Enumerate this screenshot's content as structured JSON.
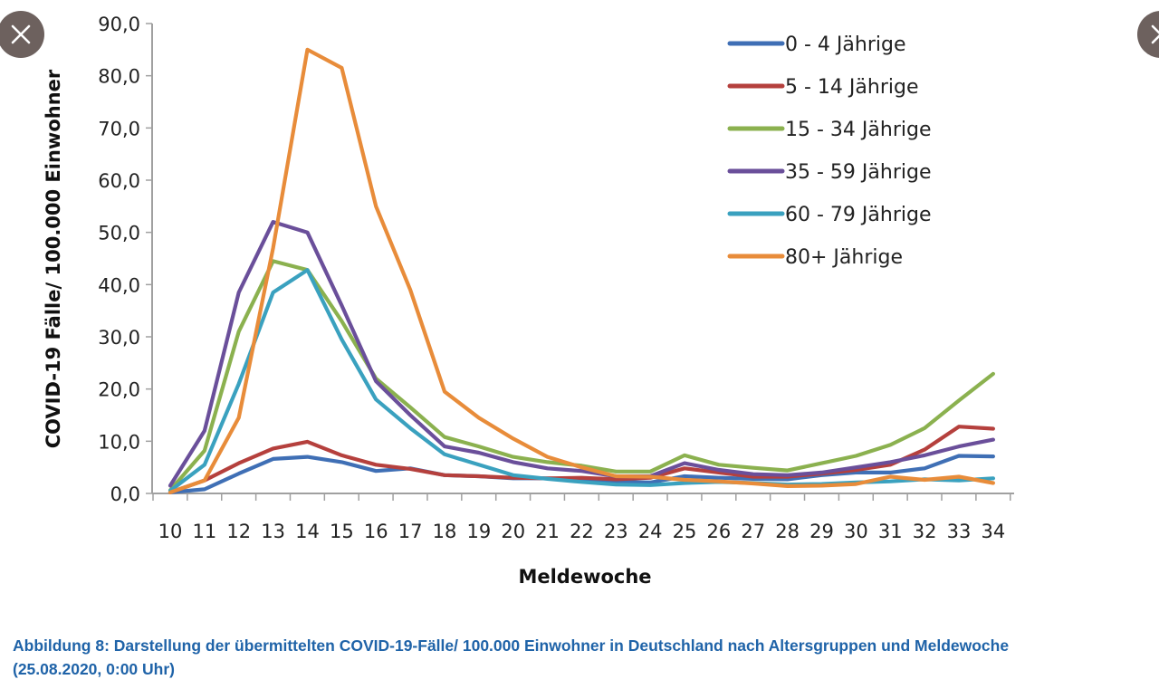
{
  "overlay": {
    "close_left_label": "Schließen",
    "close_right_label": "Schließen"
  },
  "caption": {
    "line1": "Abbildung 8: Darstellung der übermittelten COVID-19-Fälle/ 100.000 Einwohner in Deutschland nach Altersgruppen und Meldewoche",
    "line2": "(25.08.2020, 0:00 Uhr)"
  },
  "chart_data": {
    "type": "line",
    "title": "",
    "xlabel": "Meldewoche",
    "ylabel": "COVID-19 Fälle/ 100.000 Einwohner",
    "ylim": [
      0,
      90
    ],
    "yticks": [
      0,
      10,
      20,
      30,
      40,
      50,
      60,
      70,
      80,
      90
    ],
    "ytick_labels": [
      "0,0",
      "10,0",
      "20,0",
      "30,0",
      "40,0",
      "50,0",
      "60,0",
      "70,0",
      "80,0",
      "90,0"
    ],
    "grid": false,
    "legend_position": "top-right",
    "x": [
      10,
      11,
      12,
      13,
      14,
      15,
      16,
      17,
      18,
      19,
      20,
      21,
      22,
      23,
      24,
      25,
      26,
      27,
      28,
      29,
      30,
      31,
      32,
      33,
      34
    ],
    "series": [
      {
        "name": "0 - 4 Jährige",
        "color": "#3f6fb5",
        "values": [
          0.2,
          0.8,
          3.8,
          6.6,
          7.0,
          6.0,
          4.3,
          4.8,
          3.5,
          3.3,
          2.9,
          2.9,
          2.7,
          2.2,
          2.1,
          3.3,
          3.0,
          2.8,
          2.7,
          3.5,
          4.0,
          4.0,
          4.8,
          7.2,
          7.1
        ]
      },
      {
        "name": "5 - 14 Jährige",
        "color": "#b5403d",
        "values": [
          0.2,
          2.5,
          5.8,
          8.6,
          9.9,
          7.3,
          5.5,
          4.7,
          3.5,
          3.3,
          3.0,
          2.9,
          3.0,
          2.7,
          3.0,
          4.8,
          4.0,
          3.2,
          3.2,
          3.8,
          4.5,
          5.5,
          8.4,
          12.8,
          12.4
        ]
      },
      {
        "name": "15 - 34 Jährige",
        "color": "#8bb14f",
        "values": [
          0.6,
          8.2,
          31.0,
          44.5,
          42.8,
          33.0,
          22.0,
          16.5,
          10.8,
          9.0,
          7.0,
          6.0,
          5.3,
          4.2,
          4.2,
          7.3,
          5.5,
          4.9,
          4.4,
          5.8,
          7.2,
          9.3,
          12.5,
          17.8,
          22.9
        ]
      },
      {
        "name": "35 - 59 Jährige",
        "color": "#6a4f9a",
        "values": [
          1.5,
          12.0,
          38.5,
          52.0,
          50.0,
          36.0,
          21.5,
          15.0,
          9.0,
          7.8,
          6.0,
          4.8,
          4.3,
          3.3,
          3.3,
          5.8,
          4.5,
          3.7,
          3.5,
          4.0,
          5.0,
          6.0,
          7.3,
          9.0,
          10.3
        ]
      },
      {
        "name": "60 - 79 Jährige",
        "color": "#3aa1bf",
        "values": [
          0.5,
          5.5,
          21.0,
          38.5,
          42.8,
          29.5,
          18.0,
          12.5,
          7.5,
          5.5,
          3.5,
          2.8,
          2.2,
          1.7,
          1.6,
          2.0,
          2.2,
          2.0,
          1.7,
          1.8,
          2.1,
          2.3,
          2.7,
          2.5,
          2.9
        ]
      },
      {
        "name": "80+ Jährige",
        "color": "#e88c3a",
        "values": [
          0.2,
          2.5,
          14.5,
          47.0,
          85.0,
          81.5,
          55.0,
          39.0,
          19.5,
          14.5,
          10.5,
          7.0,
          5.0,
          3.3,
          3.2,
          2.6,
          2.3,
          1.9,
          1.4,
          1.5,
          1.8,
          3.2,
          2.6,
          3.2,
          2.0
        ]
      }
    ]
  }
}
